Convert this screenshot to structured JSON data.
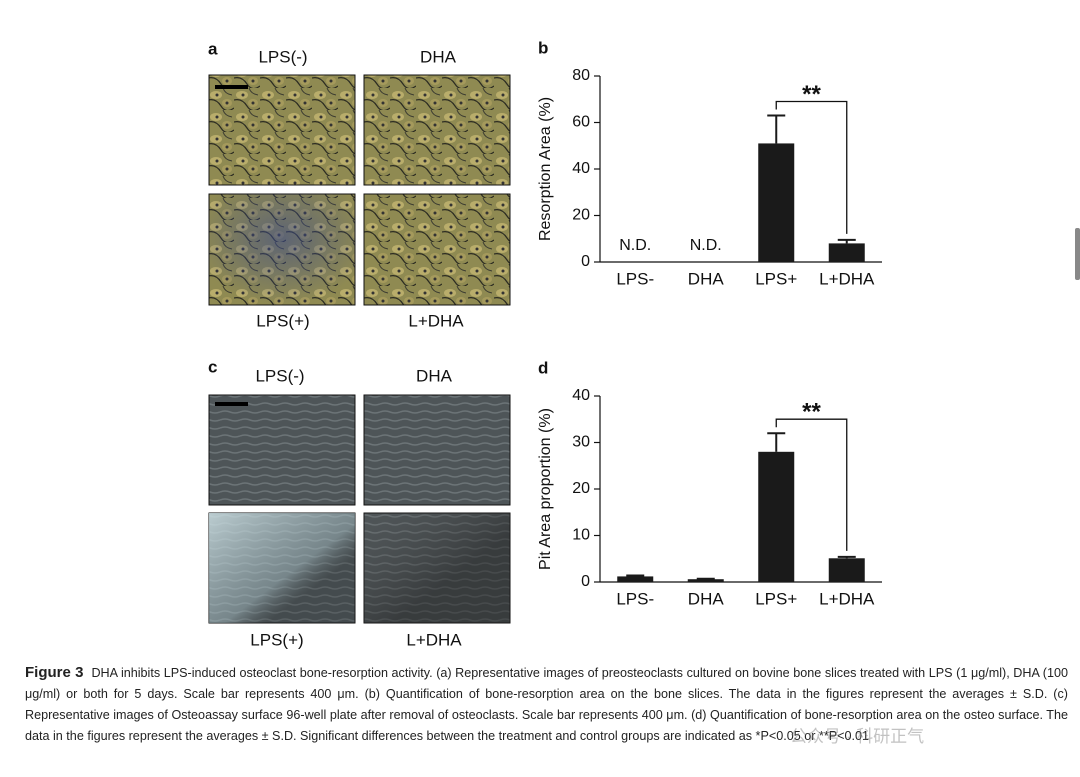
{
  "panels": {
    "a": {
      "label": "a",
      "images": [
        "LPS(-)",
        "DHA",
        "LPS(+)",
        "L+DHA"
      ]
    },
    "c": {
      "label": "c",
      "images": [
        "LPS(-)",
        "DHA",
        "LPS(+)",
        "L+DHA"
      ]
    }
  },
  "chart_data": [
    {
      "type": "bar",
      "panel": "b",
      "y_label": "Resorption Area (%)",
      "categories": [
        "LPS-",
        "DHA",
        "LPS+",
        "L+DHA"
      ],
      "values": [
        null,
        null,
        51,
        8
      ],
      "value_labels": [
        "N.D.",
        "N.D.",
        null,
        null
      ],
      "errors": [
        null,
        null,
        12,
        1.5
      ],
      "color": "#1a1a1a",
      "ylim": [
        0,
        80
      ],
      "yticks": [
        0,
        20,
        40,
        60,
        80
      ],
      "annotation": "**"
    },
    {
      "type": "bar",
      "panel": "d",
      "y_label": "Pit Area proportion (%)",
      "categories": [
        "LPS-",
        "DHA",
        "LPS+",
        "L+DHA"
      ],
      "values": [
        1.2,
        0.6,
        28,
        5.1
      ],
      "errors": [
        0.2,
        0.1,
        4,
        0.3
      ],
      "color": "#1a1a1a",
      "ylim": [
        0,
        40
      ],
      "yticks": [
        0,
        10,
        20,
        30,
        40
      ],
      "annotation": "**"
    }
  ],
  "caption": {
    "label": "Figure 3",
    "text": "DHA inhibits LPS-induced osteoclast bone-resorption activity. (a) Representative images of preosteoclasts cultured on bovine bone slices treated with LPS (1 μg/ml), DHA (100 μg/ml) or both for 5 days. Scale bar represents 400 μm. (b) Quantification of bone-resorption area on the bone slices. The data in the figures represent the averages ± S.D. (c) Representative images of Osteoassay surface 96-well plate after removal of osteoclasts. Scale bar represents 400 μm. (d) Quantification of bone-resorption area on the osteo surface. The data in the figures represent the averages ± S.D. Significant differences between the treatment and control groups are indicated as *P<0.05 or **P<0.01"
  },
  "watermark": "公众号 · 科研正气"
}
